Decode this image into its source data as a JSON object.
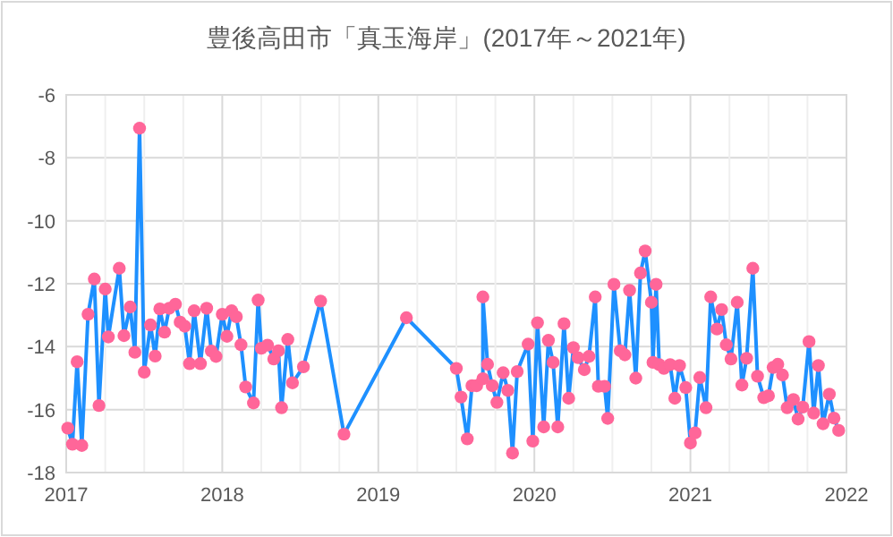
{
  "chart_data": {
    "type": "line",
    "title": "豊後高田市「真玉海岸」(2017年～2021年)",
    "x": [
      2017.01,
      2017.04,
      2017.07,
      2017.1,
      2017.14,
      2017.18,
      2017.21,
      2017.25,
      2017.27,
      2017.34,
      2017.37,
      2017.41,
      2017.44,
      2017.47,
      2017.5,
      2017.54,
      2017.57,
      2017.6,
      2017.63,
      2017.66,
      2017.7,
      2017.73,
      2017.76,
      2017.79,
      2017.82,
      2017.86,
      2017.9,
      2017.93,
      2017.96,
      2018.0,
      2018.03,
      2018.06,
      2018.09,
      2018.12,
      2018.15,
      2018.2,
      2018.23,
      2018.25,
      2018.29,
      2018.33,
      2018.36,
      2018.38,
      2018.42,
      2018.45,
      2018.52,
      2018.63,
      2018.78,
      2019.18,
      2019.5,
      2019.53,
      2019.57,
      2019.6,
      2019.63,
      2019.67,
      2019.67,
      2019.7,
      2019.73,
      2019.76,
      2019.8,
      2019.83,
      2019.86,
      2019.89,
      2019.96,
      2019.99,
      2020.02,
      2020.06,
      2020.09,
      2020.12,
      2020.15,
      2020.19,
      2020.22,
      2020.25,
      2020.28,
      2020.32,
      2020.35,
      2020.39,
      2020.41,
      2020.45,
      2020.47,
      2020.51,
      2020.55,
      2020.58,
      2020.61,
      2020.65,
      2020.68,
      2020.71,
      2020.75,
      2020.76,
      2020.78,
      2020.8,
      2020.83,
      2020.87,
      2020.9,
      2020.93,
      2020.97,
      2021.0,
      2021.03,
      2021.06,
      2021.1,
      2021.13,
      2021.17,
      2021.2,
      2021.23,
      2021.26,
      2021.3,
      2021.33,
      2021.36,
      2021.4,
      2021.43,
      2021.47,
      2021.5,
      2021.53,
      2021.56,
      2021.59,
      2021.62,
      2021.66,
      2021.69,
      2021.72,
      2021.76,
      2021.79,
      2021.82,
      2021.85,
      2021.89,
      2021.92,
      2021.95
    ],
    "series": [
      {
        "color": "#1e90ff",
        "colors": [
          "#ff6699",
          "#ff6699",
          "#ff6699",
          "#ff6699",
          "#ff6699",
          "#ff6699",
          "#ff6699",
          "#ff6699",
          "#ff6699",
          "#ff6699",
          "#ff6699",
          "#ff6699",
          "#ff6699",
          "#ff6699",
          "#ff6699",
          "#ff6699",
          "#ff6699",
          "#ff6699",
          "#ff6699",
          "#ff6699",
          "#ff6699",
          "#ff6699",
          "#ff6699",
          "#ff6699",
          "#ff6699",
          "#ff6699",
          "#ff6699",
          "#ff6699",
          "#ff6699",
          "#ff6699",
          "#ff6699",
          "#ff6699",
          "#ff6699",
          "#ff6699",
          "#ff6699",
          "#ff6699",
          "#ff6699",
          "#ff6699",
          "#ff6699",
          "#ff6699",
          "#ff6699",
          "#ff6699",
          "#ff6699",
          "#ff6699",
          "#ff6699",
          "#ff6699",
          "#ff6699",
          "#ff6699",
          "#ff6699",
          "#ff6699",
          "#ff6699",
          "#ff6699",
          "#ff6699",
          "#ff6699",
          "#ff6699",
          "#ff6699",
          "#ff6699",
          "#ff6699",
          "#ff6699",
          "#ff6699",
          "#ff6699",
          "#ff6699",
          "#ff6699",
          "#ff6699",
          "#ff6699",
          "#ff6699",
          "#ff6699",
          "#ff6699",
          "#ff6699",
          "#ff6699",
          "#ff6699",
          "#ff6699",
          "#ff6699",
          "#ff6699",
          "#ff6699",
          "#ff6699",
          "#ff6699",
          "#ff6699",
          "#ff6699",
          "#ff6699",
          "#ff6699",
          "#ff6699",
          "#ff6699",
          "#ff6699",
          "#ff6699",
          "#ff6699",
          "#ff6699",
          "#ff6699",
          "#ff6699",
          "#ff6699",
          "#ff6699",
          "#ff6699",
          "#ff6699",
          "#ff6699",
          "#ff6699",
          "#ff6699",
          "#ff6699",
          "#ff6699",
          "#ff6699",
          "#ff6699",
          "#ff6699",
          "#ff6699",
          "#ff6699",
          "#ff6699",
          "#ff6699",
          "#ff6699",
          "#ff6699",
          "#ff6699",
          "#ff6699",
          "#ff6699",
          "#ff6699",
          "#ff6699",
          "#ff6699",
          "#ff6699",
          "#ff6699",
          "#ff6699",
          "#ff6699",
          "#ff6699",
          "#ff6699",
          "#ff6699",
          "#ff6699",
          "#ff6699",
          "#ff6699",
          "#ff6699",
          "#ff6699"
        ],
        "values": [
          -16.59,
          -17.1,
          -14.48,
          -17.14,
          -12.97,
          -11.85,
          -15.87,
          -12.17,
          -13.69,
          -11.51,
          -13.65,
          -12.74,
          -14.18,
          -7.06,
          -14.81,
          -13.31,
          -14.3,
          -12.8,
          -13.54,
          -12.78,
          -12.65,
          -13.22,
          -13.35,
          -14.54,
          -12.86,
          -14.54,
          -12.78,
          -14.14,
          -14.31,
          -12.97,
          -13.67,
          -12.86,
          -13.05,
          -13.94,
          -15.28,
          -15.79,
          -12.52,
          -14.05,
          -13.95,
          -14.39,
          -14.13,
          -15.94,
          -13.77,
          -15.15,
          -14.64,
          -12.55,
          -16.78,
          -13.08,
          -14.69,
          -15.6,
          -16.93,
          -15.24,
          -15.24,
          -15.02,
          -12.42,
          -14.56,
          -15.24,
          -15.77,
          -14.83,
          -15.39,
          -17.38,
          -14.79,
          -13.92,
          -17.0,
          -13.24,
          -16.55,
          -13.8,
          -14.5,
          -16.55,
          -13.27,
          -15.64,
          -14.03,
          -14.35,
          -14.73,
          -14.31,
          -12.42,
          -15.26,
          -15.26,
          -16.28,
          -12.02,
          -14.13,
          -14.26,
          -12.21,
          -15.0,
          -11.66,
          -10.96,
          -12.59,
          -14.5,
          -12.02,
          -14.57,
          -14.69,
          -14.57,
          -15.64,
          -14.6,
          -15.3,
          -17.06,
          -16.74,
          -14.98,
          -15.94,
          -12.42,
          -13.44,
          -12.82,
          -13.94,
          -14.39,
          -12.59,
          -15.22,
          -14.37,
          -11.51,
          -14.94,
          -15.62,
          -15.56,
          -14.66,
          -14.56,
          -14.9,
          -15.94,
          -15.68,
          -16.3,
          -15.92,
          -13.84,
          -16.11,
          -14.6,
          -16.45,
          -15.51,
          -16.27,
          -16.66
        ]
      }
    ],
    "marker": "circle",
    "line_style": "solid",
    "grid": true,
    "xlim": [
      2017,
      2022
    ],
    "ylim": [
      -18,
      -6
    ],
    "xticks": [
      2017,
      {
        "value": 2017.25,
        "label": null
      },
      {
        "value": 2017.5,
        "label": null
      },
      {
        "value": 2017.75,
        "label": null
      },
      2018,
      {
        "value": 2018.25,
        "label": null
      },
      {
        "value": 2018.5,
        "label": null
      },
      {
        "value": 2018.75,
        "label": null
      },
      2019,
      {
        "value": 2019.25,
        "label": null
      },
      {
        "value": 2019.5,
        "label": null
      },
      {
        "value": 2019.75,
        "label": null
      },
      2020,
      {
        "value": 2020.25,
        "label": null
      },
      {
        "value": 2020.5,
        "label": null
      },
      {
        "value": 2020.75,
        "label": null
      },
      2021,
      {
        "value": 2021.25,
        "label": null
      },
      {
        "value": 2021.5,
        "label": null
      },
      {
        "value": 2021.75,
        "label": null
      },
      2022
    ],
    "yticks": [
      -18,
      -16,
      -14,
      -12,
      -10,
      -8,
      -6
    ]
  }
}
